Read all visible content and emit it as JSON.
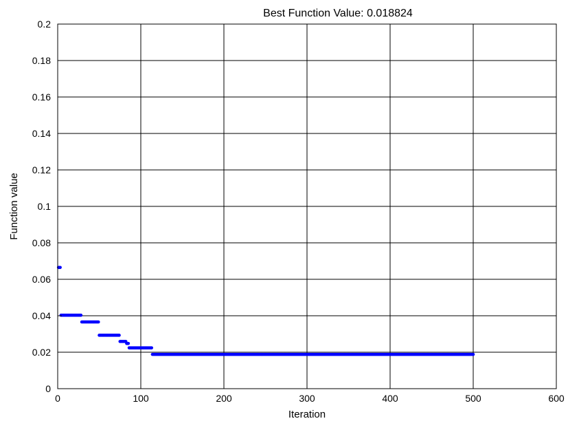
{
  "chart_data": {
    "type": "scatter",
    "title": "Best Function Value: 0.018824",
    "xlabel": "Iteration",
    "ylabel": "Function value",
    "xlim": [
      0,
      600
    ],
    "ylim": [
      0,
      0.2
    ],
    "xticks": [
      "0",
      "100",
      "200",
      "300",
      "400",
      "500",
      "600"
    ],
    "yticks": [
      "0",
      "0.02",
      "0.04",
      "0.06",
      "0.08",
      "0.1",
      "0.12",
      "0.14",
      "0.16",
      "0.18",
      "0.2"
    ],
    "grid": true,
    "marker_color": "#0000ff",
    "segments": [
      {
        "x_start": 1,
        "x_end": 3,
        "y": 0.0665
      },
      {
        "x_start": 4,
        "x_end": 28,
        "y": 0.0403
      },
      {
        "x_start": 29,
        "x_end": 49,
        "y": 0.0366
      },
      {
        "x_start": 50,
        "x_end": 74,
        "y": 0.0293
      },
      {
        "x_start": 75,
        "x_end": 82,
        "y": 0.0259
      },
      {
        "x_start": 83,
        "x_end": 85,
        "y": 0.0248
      },
      {
        "x_start": 86,
        "x_end": 113,
        "y": 0.0224
      },
      {
        "x_start": 114,
        "x_end": 500,
        "y": 0.018824
      }
    ]
  }
}
